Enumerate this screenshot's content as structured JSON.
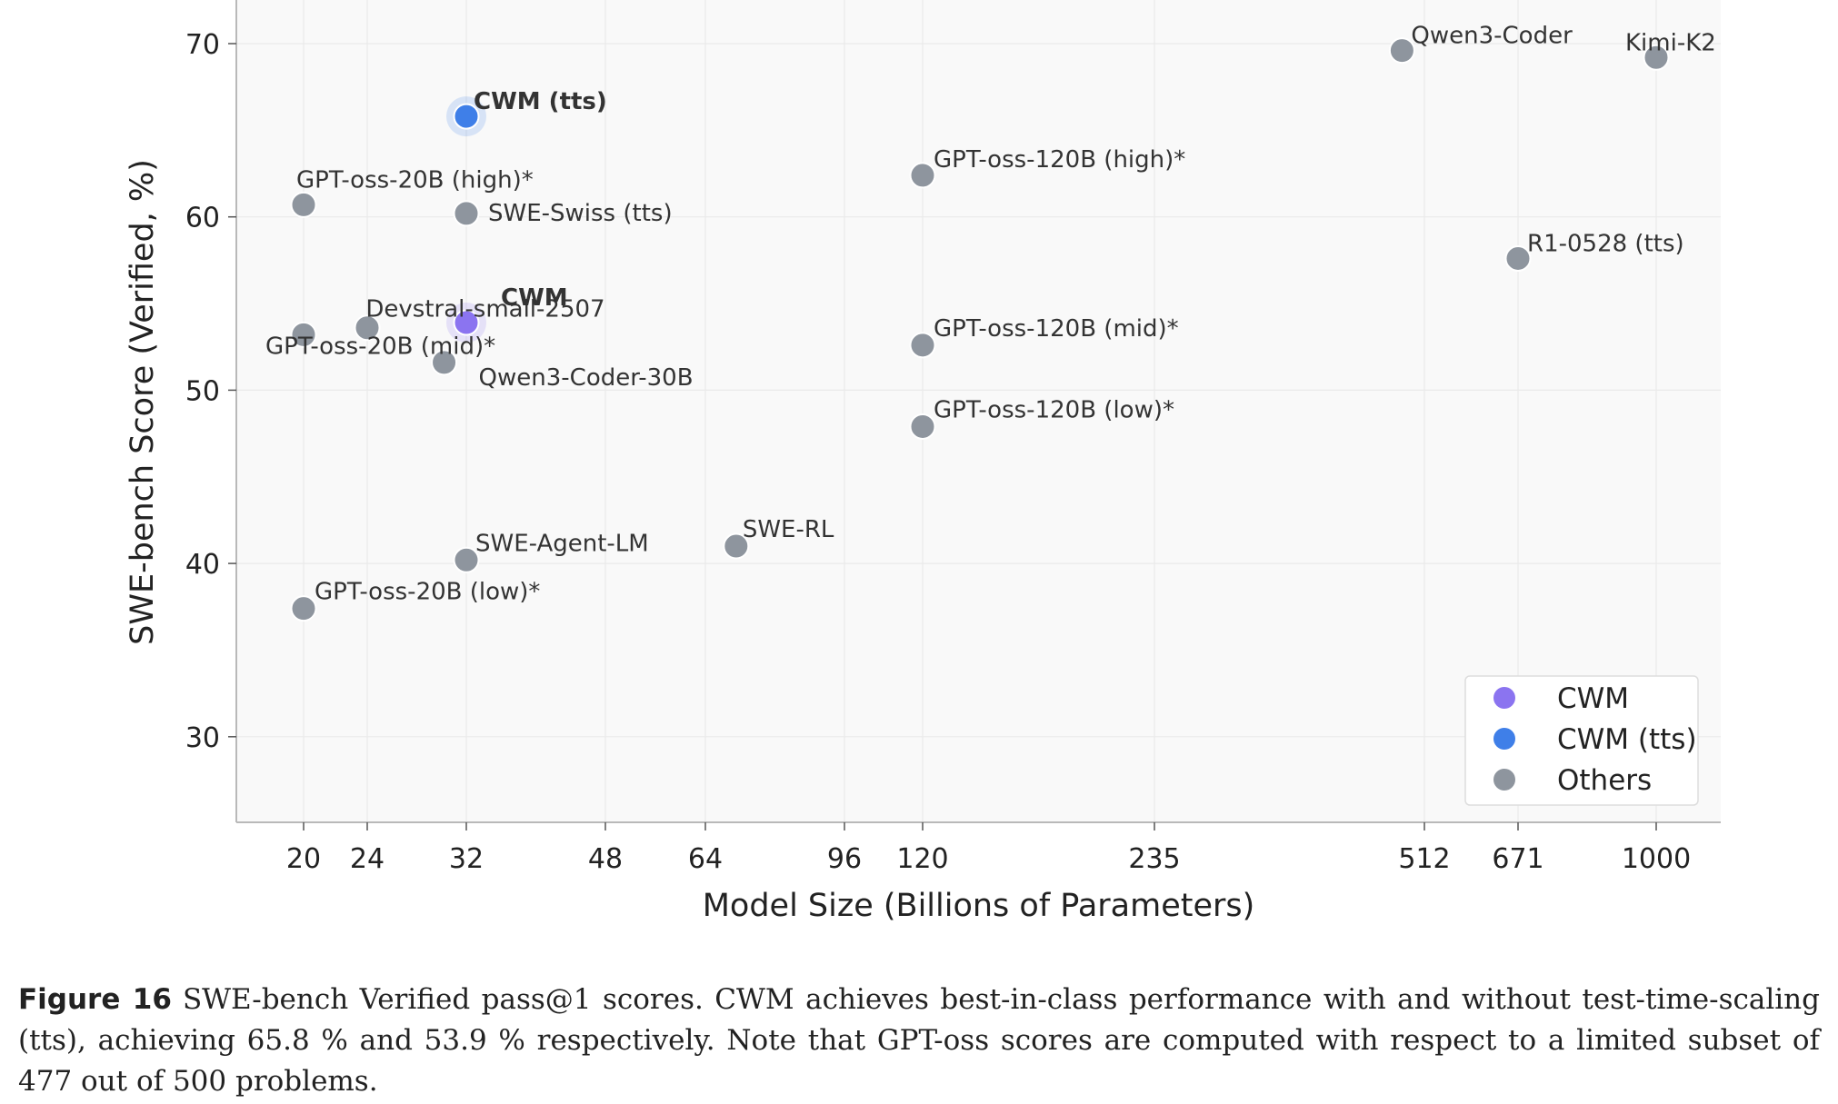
{
  "chart_data": {
    "type": "scatter",
    "xlabel": "Model Size (Billions of Parameters)",
    "ylabel": "SWE-bench Score (Verified, %)",
    "x_scale": "log",
    "x_ticks": [
      20,
      24,
      32,
      48,
      64,
      96,
      120,
      235,
      512,
      671,
      1000
    ],
    "y_ticks": [
      30,
      40,
      50,
      60,
      70
    ],
    "ylim": [
      25,
      73
    ],
    "grid": true,
    "legend_position": "bottom-right",
    "legend": [
      {
        "name": "CWM",
        "color": "#8b74f0"
      },
      {
        "name": "CWM (tts)",
        "color": "#3f7fe8"
      },
      {
        "name": "Others",
        "color": "#8e959e"
      }
    ],
    "points": [
      {
        "label": "Qwen3-Coder",
        "x": 480,
        "y": 69.6,
        "group": "Others"
      },
      {
        "label": "Kimi-K2",
        "x": 1000,
        "y": 69.2,
        "group": "Others"
      },
      {
        "label": "CWM (tts)",
        "x": 32,
        "y": 65.8,
        "group": "CWM (tts)"
      },
      {
        "label": "GPT-oss-120B (high)*",
        "x": 120,
        "y": 62.4,
        "group": "Others"
      },
      {
        "label": "GPT-oss-20B (high)*",
        "x": 20,
        "y": 60.7,
        "group": "Others"
      },
      {
        "label": "SWE-Swiss (tts)",
        "x": 32,
        "y": 60.2,
        "group": "Others"
      },
      {
        "label": "R1-0528 (tts)",
        "x": 671,
        "y": 57.6,
        "group": "Others"
      },
      {
        "label": "CWM",
        "x": 32,
        "y": 53.9,
        "group": "CWM"
      },
      {
        "label": "Devstral-small-2507",
        "x": 24,
        "y": 53.6,
        "group": "Others"
      },
      {
        "label": "GPT-oss-20B (mid)*",
        "x": 20,
        "y": 53.2,
        "group": "Others"
      },
      {
        "label": "GPT-oss-120B (mid)*",
        "x": 120,
        "y": 52.6,
        "group": "Others"
      },
      {
        "label": "Qwen3-Coder-30B",
        "x": 30,
        "y": 51.6,
        "group": "Others"
      },
      {
        "label": "GPT-oss-120B (low)*",
        "x": 120,
        "y": 47.9,
        "group": "Others"
      },
      {
        "label": "SWE-RL",
        "x": 70,
        "y": 41.0,
        "group": "Others"
      },
      {
        "label": "SWE-Agent-LM",
        "x": 32,
        "y": 40.2,
        "group": "Others"
      },
      {
        "label": "GPT-oss-20B (low)*",
        "x": 20,
        "y": 37.4,
        "group": "Others"
      }
    ]
  },
  "caption": {
    "figure_number": "Figure 16",
    "text": "SWE-bench Verified pass@1 scores. CWM achieves best-in-class performance with and without test-time-scaling (tts), achieving 65.8 % and 53.9 % respectively. Note that GPT-oss scores are computed with respect to a limited subset of 477 out of 500 problems."
  }
}
